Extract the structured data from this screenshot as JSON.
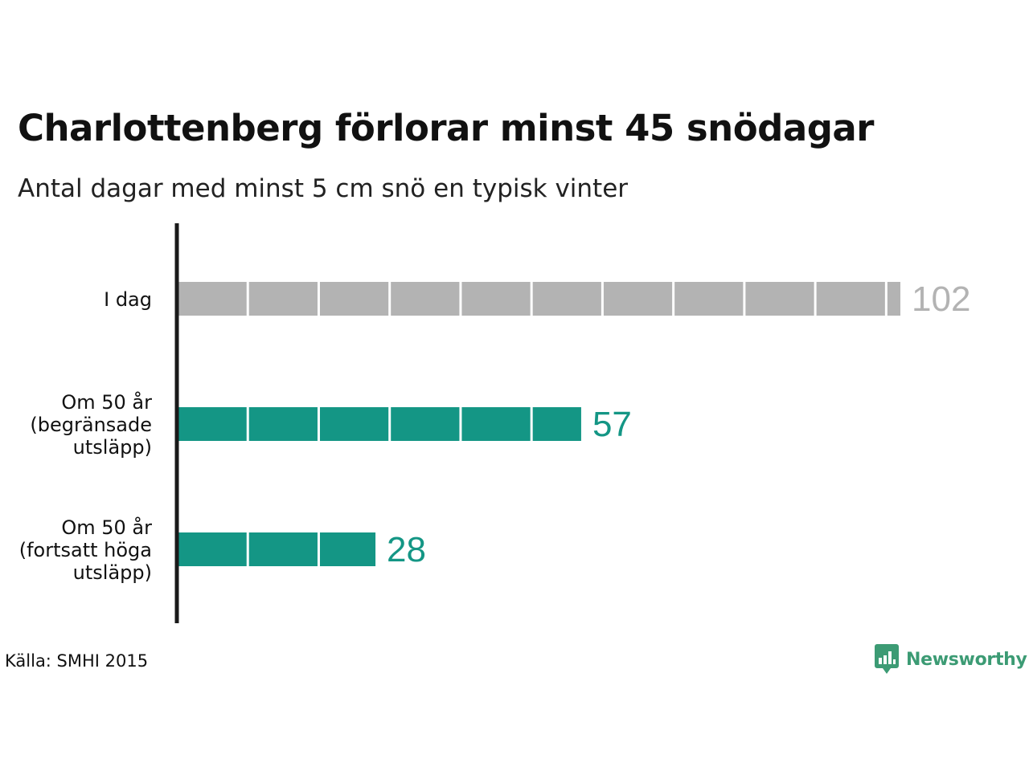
{
  "title": "Charlottenberg förlorar minst 45 snödagar",
  "subtitle": "Antal dagar med minst 5 cm snö en typisk vinter",
  "source": "Källa: SMHI 2015",
  "brand": {
    "name": "Newsworthy",
    "icon": "bar-chart-speech-bubble-icon",
    "color": "#3c9b74"
  },
  "colors": {
    "today": "#b3b3b3",
    "future": "#149685",
    "axis": "#1a1a1a",
    "segment_divider": "#ffffff"
  },
  "chart_data": {
    "type": "bar",
    "orientation": "horizontal",
    "title": "Charlottenberg förlorar minst 45 snödagar",
    "subtitle": "Antal dagar med minst 5 cm snö en typisk vinter",
    "categories": [
      [
        "I dag"
      ],
      [
        "Om 50 år",
        "(begränsade",
        "utsläpp)"
      ],
      [
        "Om 50 år",
        "(fortsatt höga",
        "utsläpp)"
      ]
    ],
    "values": [
      102,
      57,
      28
    ],
    "value_labels": [
      "102",
      "57",
      "28"
    ],
    "bar_colors": [
      "#b3b3b3",
      "#149685",
      "#149685"
    ],
    "segment_step": 10,
    "xlim": [
      0,
      102
    ],
    "xlabel": "",
    "ylabel": "",
    "grid": false,
    "legend": false
  }
}
